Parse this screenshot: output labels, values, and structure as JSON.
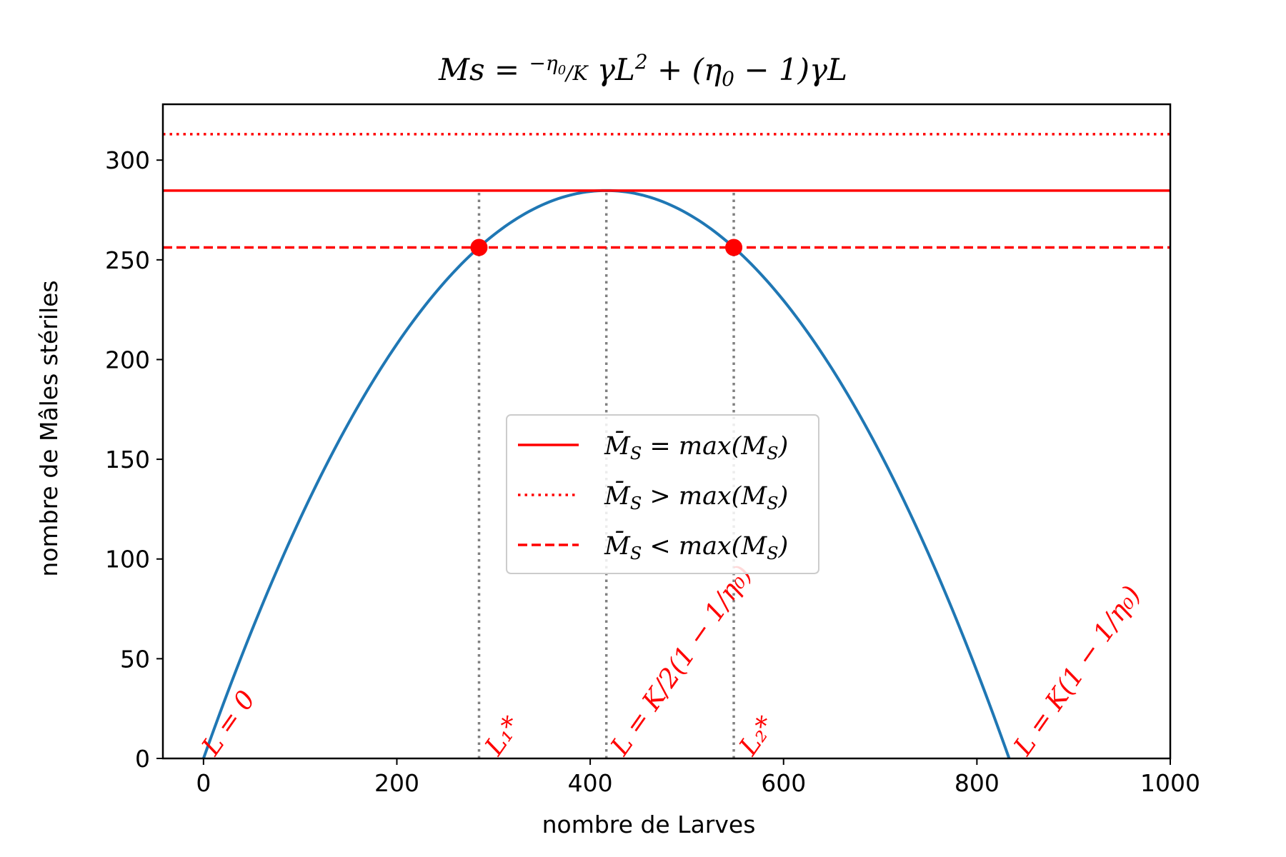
{
  "chart_data": {
    "type": "line",
    "title": "Ms = −η₀/K γL² + (η₀ − 1)γL",
    "xlabel": "nombre de Larves",
    "ylabel": "nombre de Mâles stériles",
    "xlim": [
      -42,
      1000
    ],
    "ylim": [
      0,
      328
    ],
    "xticks": [
      0,
      200,
      400,
      600,
      800,
      1000
    ],
    "yticks": [
      0,
      50,
      100,
      150,
      200,
      250,
      300
    ],
    "grid": false,
    "legend_position": "center",
    "colors": {
      "curve": "#1f77b4",
      "reference": "#ff0000",
      "guides": "#808080"
    },
    "curve": {
      "formula": "Ms = a*L^2 + b*L",
      "a": -0.00164,
      "b": 1.3667,
      "x_start": 0,
      "x_end": 833.3,
      "vertex": {
        "x": 416.7,
        "y": 284.7
      }
    },
    "series": [
      {
        "name": "M̄S = max(MS)",
        "value": 284.7,
        "style": "solid"
      },
      {
        "name": "M̄S > max(MS)",
        "value": 313,
        "style": "dotted"
      },
      {
        "name": "M̄S < max(MS)",
        "value": 256.2,
        "style": "dashed"
      }
    ],
    "intersections": [
      {
        "x": 285,
        "y": 256.2
      },
      {
        "x": 548.5,
        "y": 256.2
      }
    ],
    "vertical_guides": [
      285,
      416.7,
      548.5
    ],
    "annotations": [
      {
        "text": "L = 0",
        "x": 12,
        "y": 0
      },
      {
        "text": "L₁*",
        "x": 305,
        "y": 0
      },
      {
        "text": "L = K/2(1 − 1/η₀)",
        "x": 435,
        "y": 0
      },
      {
        "text": "L₂*",
        "x": 568,
        "y": 0
      },
      {
        "text": "L = K(1 − 1/η₀)",
        "x": 852,
        "y": 0
      }
    ]
  }
}
